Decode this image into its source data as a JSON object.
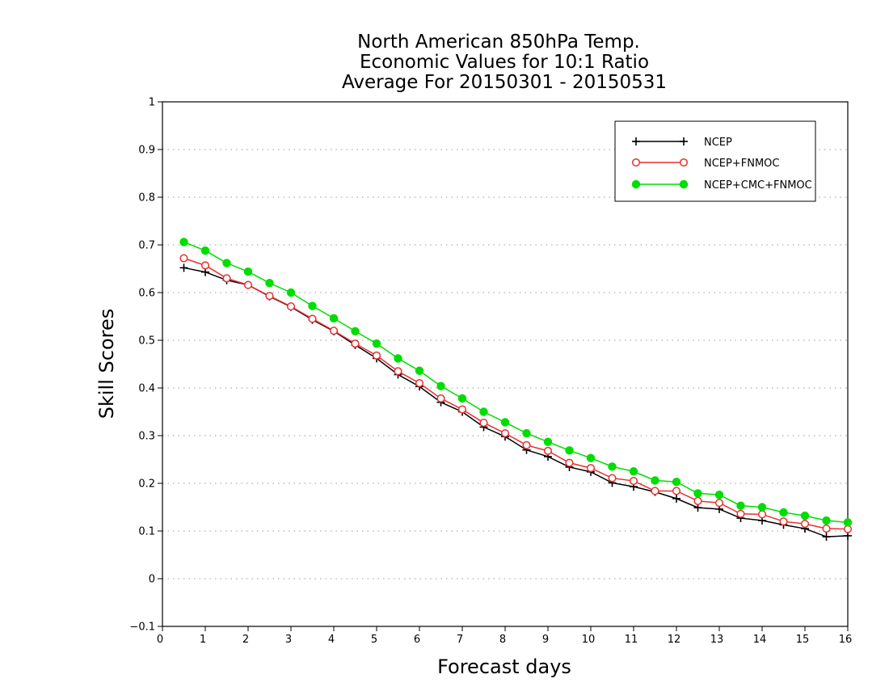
{
  "chart_data": {
    "type": "line",
    "title_lines": [
      "North American 850hPa Temp.",
      "Economic Values for 10:1 Ratio",
      "Average For 20150301 - 20150531"
    ],
    "xlabel": "Forecast days",
    "ylabel": "Skill Scores",
    "xlim": [
      0,
      16
    ],
    "ylim": [
      -0.1,
      1
    ],
    "xticks": [
      "0",
      "1",
      "2",
      "3",
      "4",
      "5",
      "6",
      "7",
      "8",
      "9",
      "10",
      "11",
      "12",
      "13",
      "14",
      "15",
      "16"
    ],
    "yticks": [
      "−0.1",
      "0",
      "0.1",
      "0.2",
      "0.3",
      "0.4",
      "0.5",
      "0.6",
      "0.7",
      "0.8",
      "0.9",
      "1"
    ],
    "grid": true,
    "legend_position": "top-right",
    "x": [
      0.5,
      1,
      1.5,
      2,
      2.5,
      3,
      3.5,
      4,
      4.5,
      5,
      5.5,
      6,
      6.5,
      7,
      7.5,
      8,
      8.5,
      9,
      9.5,
      10,
      10.5,
      11,
      11.5,
      12,
      12.5,
      13,
      13.5,
      14,
      14.5,
      15,
      15.5,
      16
    ],
    "series": [
      {
        "name": "NCEP",
        "color": "#000000",
        "marker": "plus",
        "values": [
          0.652,
          0.643,
          0.626,
          0.616,
          0.592,
          0.57,
          0.543,
          0.519,
          0.49,
          0.462,
          0.428,
          0.403,
          0.37,
          0.35,
          0.318,
          0.298,
          0.27,
          0.256,
          0.234,
          0.224,
          0.201,
          0.193,
          0.182,
          0.168,
          0.149,
          0.146,
          0.127,
          0.122,
          0.113,
          0.105,
          0.088,
          0.09
        ]
      },
      {
        "name": "NCEP+FNMOC",
        "color": "#e83030",
        "marker": "open-circle",
        "values": [
          0.672,
          0.657,
          0.63,
          0.616,
          0.593,
          0.571,
          0.545,
          0.52,
          0.493,
          0.468,
          0.435,
          0.41,
          0.378,
          0.355,
          0.327,
          0.305,
          0.28,
          0.268,
          0.243,
          0.232,
          0.211,
          0.205,
          0.184,
          0.184,
          0.163,
          0.159,
          0.136,
          0.135,
          0.12,
          0.115,
          0.105,
          0.104
        ]
      },
      {
        "name": "NCEP+CMC+FNMOC",
        "color": "#00dd00",
        "marker": "filled-circle",
        "values": [
          0.706,
          0.688,
          0.662,
          0.644,
          0.62,
          0.6,
          0.572,
          0.546,
          0.519,
          0.493,
          0.462,
          0.436,
          0.404,
          0.378,
          0.35,
          0.328,
          0.305,
          0.287,
          0.269,
          0.253,
          0.235,
          0.225,
          0.206,
          0.203,
          0.179,
          0.176,
          0.153,
          0.15,
          0.139,
          0.132,
          0.122,
          0.118
        ]
      }
    ]
  }
}
